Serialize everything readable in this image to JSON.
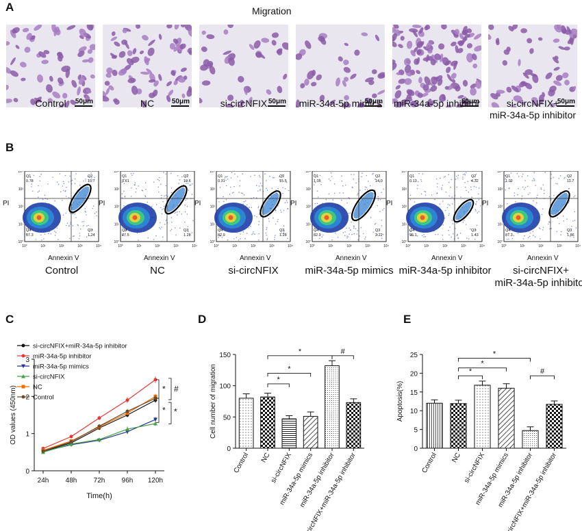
{
  "panel_a": {
    "letter": "A",
    "title": "Migration",
    "scale_label": "50μm",
    "images": [
      {
        "label": "Control",
        "label2": "",
        "density": 70
      },
      {
        "label": "NC",
        "label2": "",
        "density": 75
      },
      {
        "label": "si-circNFIX",
        "label2": "",
        "density": 38
      },
      {
        "label": "miR-34a-5p mimics",
        "label2": "",
        "density": 40
      },
      {
        "label": "miR-34a-5p inhibitor",
        "label2": "",
        "density": 130
      },
      {
        "label": "si-circNFIX+",
        "label2": "miR-34a-5p inhibitor",
        "density": 62
      }
    ]
  },
  "panel_b": {
    "letter": "B",
    "x_label": "Annexin V",
    "y_label": "PI",
    "tick_labels": [
      "10°",
      "10¹",
      "10²",
      "10³",
      "10⁴"
    ],
    "plots": [
      {
        "label": "Control",
        "label2": "",
        "q1_name": "Q1",
        "q1": "0.78",
        "q2_name": "Q2",
        "q2": "10.7",
        "q3_name": "Q3",
        "q3": "1.24",
        "q4_name": "Q4",
        "q4": "87.3"
      },
      {
        "label": "NC",
        "label2": "",
        "q1_name": "Q1",
        "q1": "0.61",
        "q2_name": "Q2",
        "q2": "10.6",
        "q3_name": "Q3",
        "q3": "1.28",
        "q4_name": "Q4",
        "q4": "87.5"
      },
      {
        "label": "si-circNFIX",
        "label2": "",
        "q1_name": "Q1",
        "q1": "0.31",
        "q2_name": "Q2",
        "q2": "15.5",
        "q3_name": "Q3",
        "q3": "1.28",
        "q4_name": "Q4",
        "q4": "82.9"
      },
      {
        "label": "miR-34a-5p mimics",
        "label2": "",
        "q1_name": "Q1",
        "q1": "1.05",
        "q2_name": "Q2",
        "q2": "14.0",
        "q3_name": "Q3",
        "q3": "2.22",
        "q4_name": "Q4",
        "q4": "82.9"
      },
      {
        "label": "miR-34a-5p inhibitor",
        "label2": "",
        "q1_name": "Q1",
        "q1": "0.13",
        "q2_name": "Q2",
        "q2": "4.32",
        "q3_name": "Q3",
        "q3": "1.43",
        "q4_name": "Q4",
        "q4": "95.1"
      },
      {
        "label": "si-circNFIX+",
        "label2": "miR-34a-5p inhibitor",
        "q1_name": "Q1",
        "q1": "1.02",
        "q2_name": "Q2",
        "q2": "11.7",
        "q3_name": "Q3",
        "q3": "1.86",
        "q4_name": "Q4",
        "q4": "87.3"
      }
    ]
  },
  "chart_data": [
    {
      "panel": "C",
      "type": "line",
      "xlabel": "Time(h)",
      "ylabel": "OD values (450nm)",
      "categories": [
        "24h",
        "48h",
        "72h",
        "96h",
        "120h"
      ],
      "ylim": [
        0,
        3
      ],
      "yticks": [
        "0",
        "1",
        "2",
        "3"
      ],
      "series": [
        {
          "name": "si-circNFIX+miR-34a-5p inhibitor",
          "color": "#111111",
          "marker": "circle",
          "values": [
            0.52,
            0.75,
            1.15,
            1.5,
            1.9
          ],
          "errors": [
            0.03,
            0.04,
            0.05,
            0.06,
            0.07
          ]
        },
        {
          "name": "miR-34a-5p inhibitor",
          "color": "#e53935",
          "marker": "circle",
          "values": [
            0.6,
            0.92,
            1.42,
            1.9,
            2.45
          ],
          "errors": [
            0.04,
            0.05,
            0.06,
            0.08,
            0.09
          ]
        },
        {
          "name": "miR-34a-5p mimics",
          "color": "#283593",
          "marker": "triangle-down",
          "values": [
            0.52,
            0.7,
            0.82,
            1.05,
            1.38
          ],
          "errors": [
            0.03,
            0.04,
            0.05,
            0.06,
            0.07
          ]
        },
        {
          "name": "si-circNFIX",
          "color": "#43a047",
          "marker": "triangle-up",
          "values": [
            0.5,
            0.72,
            0.84,
            1.12,
            1.27
          ],
          "errors": [
            0.03,
            0.04,
            0.05,
            0.07,
            0.06
          ]
        },
        {
          "name": "NC",
          "color": "#ef6c00",
          "marker": "square",
          "values": [
            0.55,
            0.8,
            1.18,
            1.55,
            2.0
          ],
          "errors": [
            0.03,
            0.04,
            0.05,
            0.06,
            0.07
          ]
        },
        {
          "name": "Control",
          "color": "#6d4c2a",
          "marker": "circle",
          "values": [
            0.53,
            0.78,
            1.2,
            1.6,
            1.95
          ],
          "errors": [
            0.03,
            0.04,
            0.05,
            0.06,
            0.07
          ]
        }
      ],
      "annotations": [
        "*",
        "#",
        "*",
        "*"
      ]
    },
    {
      "panel": "D",
      "type": "bar",
      "ylabel": "Cell number of migration",
      "categories": [
        "Control",
        "NC",
        "si-circNFIX",
        "miR-34a-5p mimics",
        "miR-34a-5p inhibitor",
        "si-circNFIX+miR-34a-5p inhibitor"
      ],
      "values": [
        80,
        82,
        47,
        51,
        132,
        73
      ],
      "errors": [
        7,
        6,
        5,
        7,
        8,
        6
      ],
      "patterns": [
        "dots",
        "checker",
        "hlines",
        "diag",
        "dots-dense",
        "checker"
      ],
      "ylim": [
        0,
        150
      ],
      "yticks": [
        "0",
        "50",
        "100",
        "150"
      ],
      "significance": [
        {
          "from": 1,
          "to": 2,
          "label": "*",
          "value": 103
        },
        {
          "from": 1,
          "to": 3,
          "label": "*",
          "value": 120
        },
        {
          "from": 1,
          "to": 4,
          "label": "*",
          "value": 148
        },
        {
          "from": 4,
          "to": 5,
          "label": "#",
          "value": 148
        }
      ]
    },
    {
      "panel": "E",
      "type": "bar",
      "ylabel": "Apoptosis(%)",
      "categories": [
        "Control",
        "NC",
        "si-circNFIX",
        "miR-34a-5p mimics",
        "miR-34a-5p inhibitor",
        "si-circNFIX+miR-34a-5p inhibitor"
      ],
      "values": [
        12,
        11.9,
        16.8,
        16,
        4.7,
        11.7
      ],
      "errors": [
        0.9,
        0.9,
        1.1,
        1.2,
        1.0,
        0.9
      ],
      "patterns": [
        "vlines",
        "checker",
        "dots",
        "diag",
        "dots-dense",
        "checker"
      ],
      "ylim": [
        0,
        25
      ],
      "yticks": [
        "0",
        "5",
        "10",
        "15",
        "20",
        "25"
      ],
      "significance": [
        {
          "from": 1,
          "to": 2,
          "label": "*",
          "value": 19.3
        },
        {
          "from": 1,
          "to": 3,
          "label": "*",
          "value": 21.4
        },
        {
          "from": 1,
          "to": 4,
          "label": "*",
          "value": 24.0
        },
        {
          "from": 4,
          "to": 5,
          "label": "#",
          "value": 19.3
        }
      ]
    }
  ]
}
